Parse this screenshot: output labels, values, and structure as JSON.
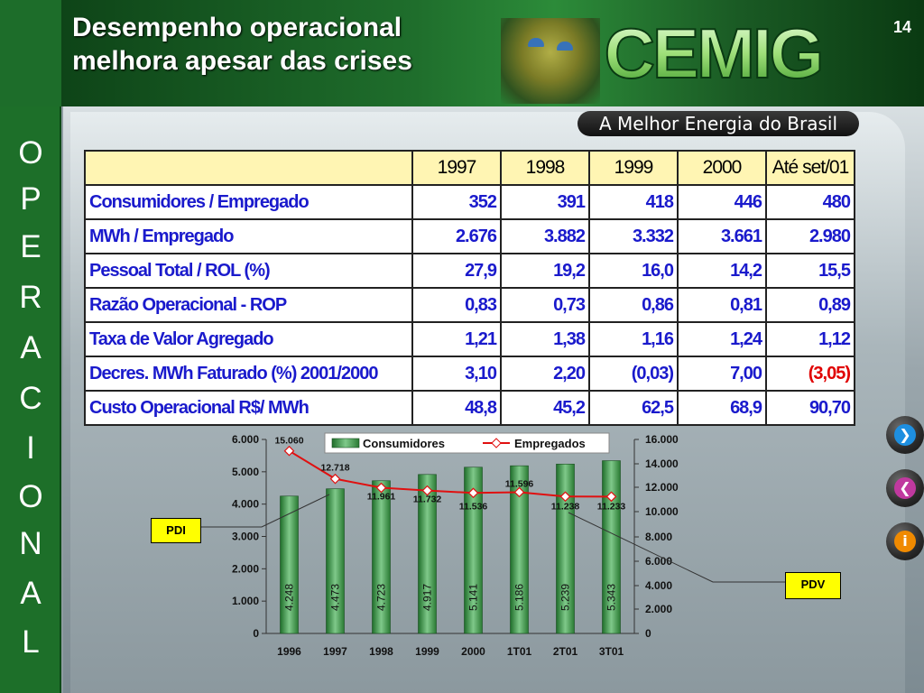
{
  "header": {
    "title_line1": "Desempenho operacional",
    "title_line2": "melhora apesar das crises",
    "page_number": "14",
    "logo_text": "CEMIG",
    "slogan": "A Melhor Energia do Brasil"
  },
  "sidebar": {
    "letters": [
      "O",
      "P",
      "E",
      "R",
      "A",
      "C",
      "I",
      "O",
      "N",
      "A",
      "L"
    ]
  },
  "table": {
    "columns": [
      "1997",
      "1998",
      "1999",
      "2000",
      "Até set/01"
    ],
    "rows": [
      {
        "label": "Consumidores / Empregado",
        "values": [
          "352",
          "391",
          "418",
          "446",
          "480"
        ]
      },
      {
        "label": "MWh / Empregado",
        "values": [
          "2.676",
          "3.882",
          "3.332",
          "3.661",
          "2.980"
        ]
      },
      {
        "label": "Pessoal Total / ROL  (%)",
        "values": [
          "27,9",
          "19,2",
          "16,0",
          "14,2",
          "15,5"
        ]
      },
      {
        "label": "Razão Operacional - ROP",
        "values": [
          "0,83",
          "0,73",
          "0,86",
          "0,81",
          "0,89"
        ]
      },
      {
        "label": "Taxa de Valor Agregado",
        "values": [
          "1,21",
          "1,38",
          "1,16",
          "1,24",
          "1,12"
        ]
      },
      {
        "label": "Decres. MWh Faturado (%) 2001/2000",
        "values": [
          "3,10",
          "2,20",
          "(0,03)",
          "7,00",
          "(3,05)"
        ]
      },
      {
        "label": "Custo Operacional R$/ MWh",
        "values": [
          "48,8",
          "45,2",
          "62,5",
          "68,9",
          "90,70"
        ]
      }
    ]
  },
  "chart_data": {
    "type": "bar",
    "categories": [
      "1996",
      "1997",
      "1998",
      "1999",
      "2000",
      "1T01",
      "2T01",
      "3T01"
    ],
    "series": [
      {
        "name": "Consumidores",
        "type": "bar",
        "axis": "left",
        "values": [
          4248,
          4473,
          4723,
          4917,
          5141,
          5186,
          5239,
          5343
        ],
        "labels": [
          "4.248",
          "4.473",
          "4.723",
          "4.917",
          "5.141",
          "5.186",
          "5.239",
          "5.343"
        ],
        "color": "#2d8a3a"
      },
      {
        "name": "Empregados",
        "type": "line",
        "axis": "right",
        "values": [
          15060,
          12718,
          11961,
          11732,
          11536,
          11596,
          11238,
          11233
        ],
        "labels": [
          "15.060",
          "12.718",
          "11.961",
          "11.732",
          "11.536",
          "11.596",
          "11.238",
          "11.233"
        ],
        "color": "#e01010"
      }
    ],
    "left_axis": {
      "min": 0,
      "max": 6000,
      "ticks": [
        0,
        1000,
        2000,
        3000,
        4000,
        5000,
        6000
      ],
      "tick_labels": [
        "0",
        "1.000",
        "2.000",
        "3.000",
        "4.000",
        "5.000",
        "6.000"
      ]
    },
    "right_axis": {
      "ticks": [
        0,
        2000,
        4000,
        6000,
        8000,
        10000,
        12000,
        14000,
        16000
      ],
      "tick_labels": [
        "0",
        "2.000",
        "4.000",
        "6.000",
        "8.000",
        "10.000",
        "12.000",
        "14.000",
        "16.000"
      ]
    },
    "legend": "top-center",
    "annotations": [
      "PDI",
      "PDV"
    ]
  },
  "callouts": {
    "pdi": "PDI",
    "pdv": "PDV"
  },
  "nav": {
    "next_icon": "chevron-right-icon",
    "prev_icon": "chevron-left-icon",
    "info_icon": "info-icon",
    "info_glyph": "i"
  }
}
